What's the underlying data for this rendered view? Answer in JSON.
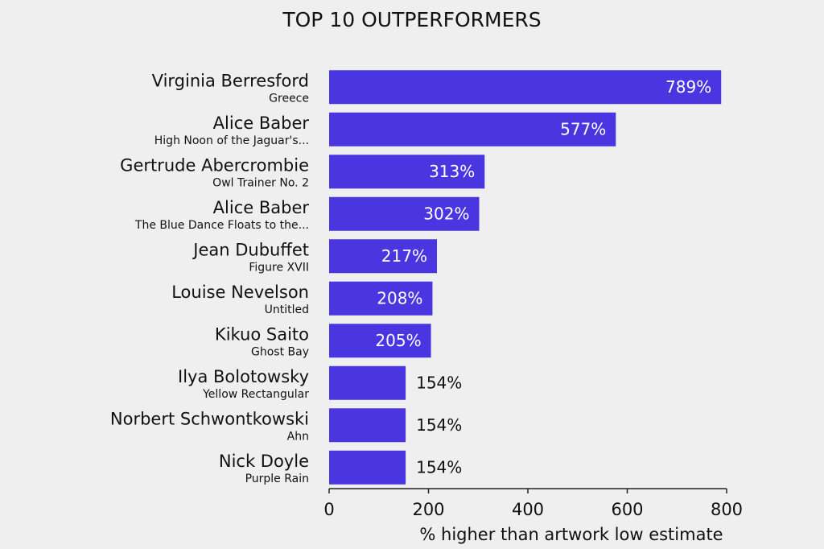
{
  "chart_data": {
    "type": "hbar",
    "title": "TOP 10 OUTPERFORMERS",
    "categories": [
      "Virginia Berresford",
      "Alice Baber",
      "Gertrude Abercrombie",
      "Alice Baber",
      "Jean Dubuffet",
      "Louise Nevelson",
      "Kikuo Saito",
      "Ilya Bolotowsky",
      "Norbert Schwontkowski",
      "Nick Doyle"
    ],
    "sublabels": [
      "Greece",
      "High Noon of the Jaguar's...",
      "Owl Trainer No. 2",
      "The Blue Dance Floats to the...",
      "Figure XVII",
      "Untitled",
      "Ghost Bay",
      "Yellow Rectangular",
      "Ahn",
      "Purple Rain"
    ],
    "values": [
      789,
      577,
      313,
      302,
      217,
      208,
      205,
      154,
      154,
      154
    ],
    "value_labels": [
      "789%",
      "577%",
      "313%",
      "302%",
      "217%",
      "208%",
      "205%",
      "154%",
      "154%",
      "154%"
    ],
    "color": "#4a36e0",
    "x_label": "% higher than artwork low estimate",
    "xlim": [
      0,
      800
    ],
    "xticks": [
      0,
      200,
      400,
      600,
      800
    ]
  }
}
